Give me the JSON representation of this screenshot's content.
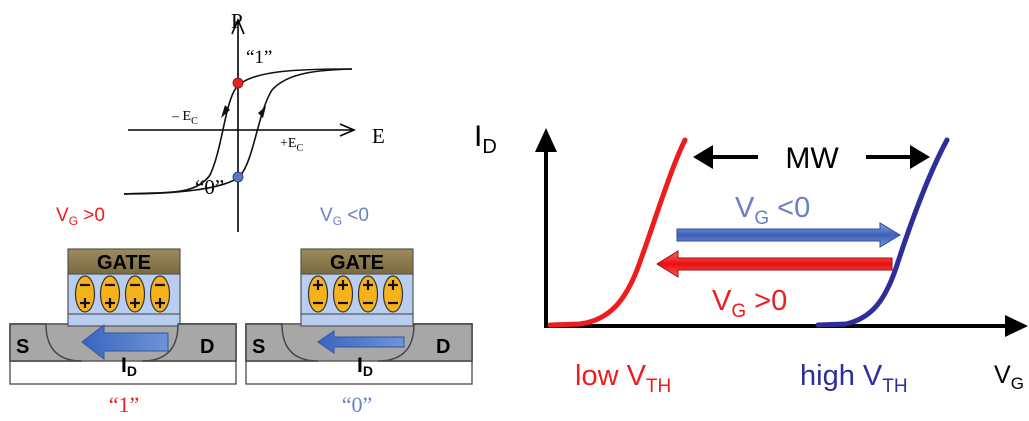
{
  "hysteresis": {
    "axis_p": "P",
    "axis_e": "E",
    "state_one_label": "“1”",
    "state_zero_label": "“0”",
    "neg_ec": {
      "prefix": "– E",
      "sub": "C"
    },
    "pos_ec": {
      "prefix": "+E",
      "sub": "C"
    },
    "vg_pos": {
      "main": "V",
      "sub": "G",
      "rest": " >0"
    },
    "vg_neg": {
      "main": "V",
      "sub": "G",
      "rest": " <0"
    }
  },
  "devices": {
    "left": {
      "gate_label": "GATE",
      "source_label": "S",
      "drain_label": "D",
      "id_main": "I",
      "id_sub": "D",
      "caption": "“1”"
    },
    "right": {
      "gate_label": "GATE",
      "source_label": "S",
      "drain_label": "D",
      "id_main": "I",
      "id_sub": "D",
      "caption": "“0”"
    }
  },
  "transfer": {
    "ylabel": {
      "main": "I",
      "sub": "D"
    },
    "xlabel": {
      "main": "V",
      "sub": "G"
    },
    "mw_label": "MW",
    "vg_neg": {
      "main": "V",
      "sub": "G",
      "rest": " <0"
    },
    "vg_pos": {
      "main": "V",
      "sub": "G",
      "rest": " >0"
    },
    "low_vth": {
      "main": "low V",
      "sub": "TH"
    },
    "high_vth": {
      "main": "high V",
      "sub": "TH"
    }
  },
  "colors": {
    "red": "#ee1c1c",
    "blue_label": "#6a7fc4",
    "navy": "#2e2e9a",
    "gate": "#8a7a4e",
    "dipole": "#f5b21b",
    "dielectric": "#b8cdef",
    "sd": "#a7a7a7",
    "id_arrow": "#4a74c4"
  }
}
